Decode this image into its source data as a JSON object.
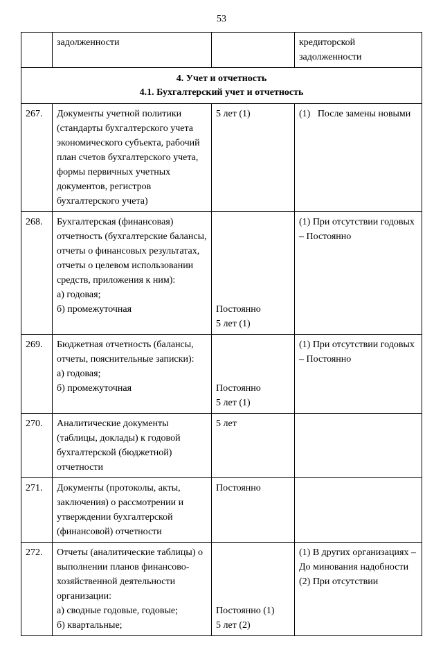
{
  "page_number": "53",
  "top_row": {
    "col1": "",
    "col2": "задолженности",
    "col3": "",
    "col4": "кредиторской задолженности"
  },
  "section": {
    "title1": "4. Учет и отчетность",
    "title2": "4.1. Бухгалтерский учет и отчетность"
  },
  "rows": [
    {
      "num": "267.",
      "desc": "Документы учетной политики (стандарты бухгалтерского учета экономического субъекта, рабочий план счетов бухгалтерского учета, формы первичных учетных документов, регистров бухгалтерского учета)",
      "term": "5 лет (1)",
      "note": "(1)   После замены новыми"
    },
    {
      "num": "268.",
      "desc": "Бухгалтерская (финансовая) отчетность (бухгалтерские балансы, отчеты о финансовых результатах, отчеты о целевом использовании средств, приложения к ним):\nа) годовая;\nб) промежуточная",
      "term": "\n\n\n\n\n\nПостоянно\n5 лет (1)",
      "note": "(1) При отсутствии годовых – Постоянно"
    },
    {
      "num": "269.",
      "desc": "Бюджетная отчетность (балансы, отчеты, пояснительные записки):\nа) годовая;\nб) промежуточная",
      "term": "\n\n\nПостоянно\n5 лет (1)",
      "note": "(1) При отсутствии годовых – Постоянно"
    },
    {
      "num": "270.",
      "desc": "Аналитические документы (таблицы, доклады) к годовой бухгалтерской (бюджетной) отчетности",
      "term": "5 лет",
      "note": ""
    },
    {
      "num": "271.",
      "desc": "Документы (протоколы, акты, заключения) о рассмотрении и утверждении бухгалтерской (финансовой) отчетности",
      "term": "Постоянно",
      "note": ""
    },
    {
      "num": "272.",
      "desc": "Отчеты (аналитические таблицы) о выполнении планов финансово-хозяйственной деятельности организации:\nа) сводные годовые, годовые;\nб) квартальные;",
      "term": "\n\n\n\nПостоянно (1)\n5 лет (2)",
      "note": "(1) В других организациях – До минования надобности\n(2) При отсутствии"
    }
  ]
}
